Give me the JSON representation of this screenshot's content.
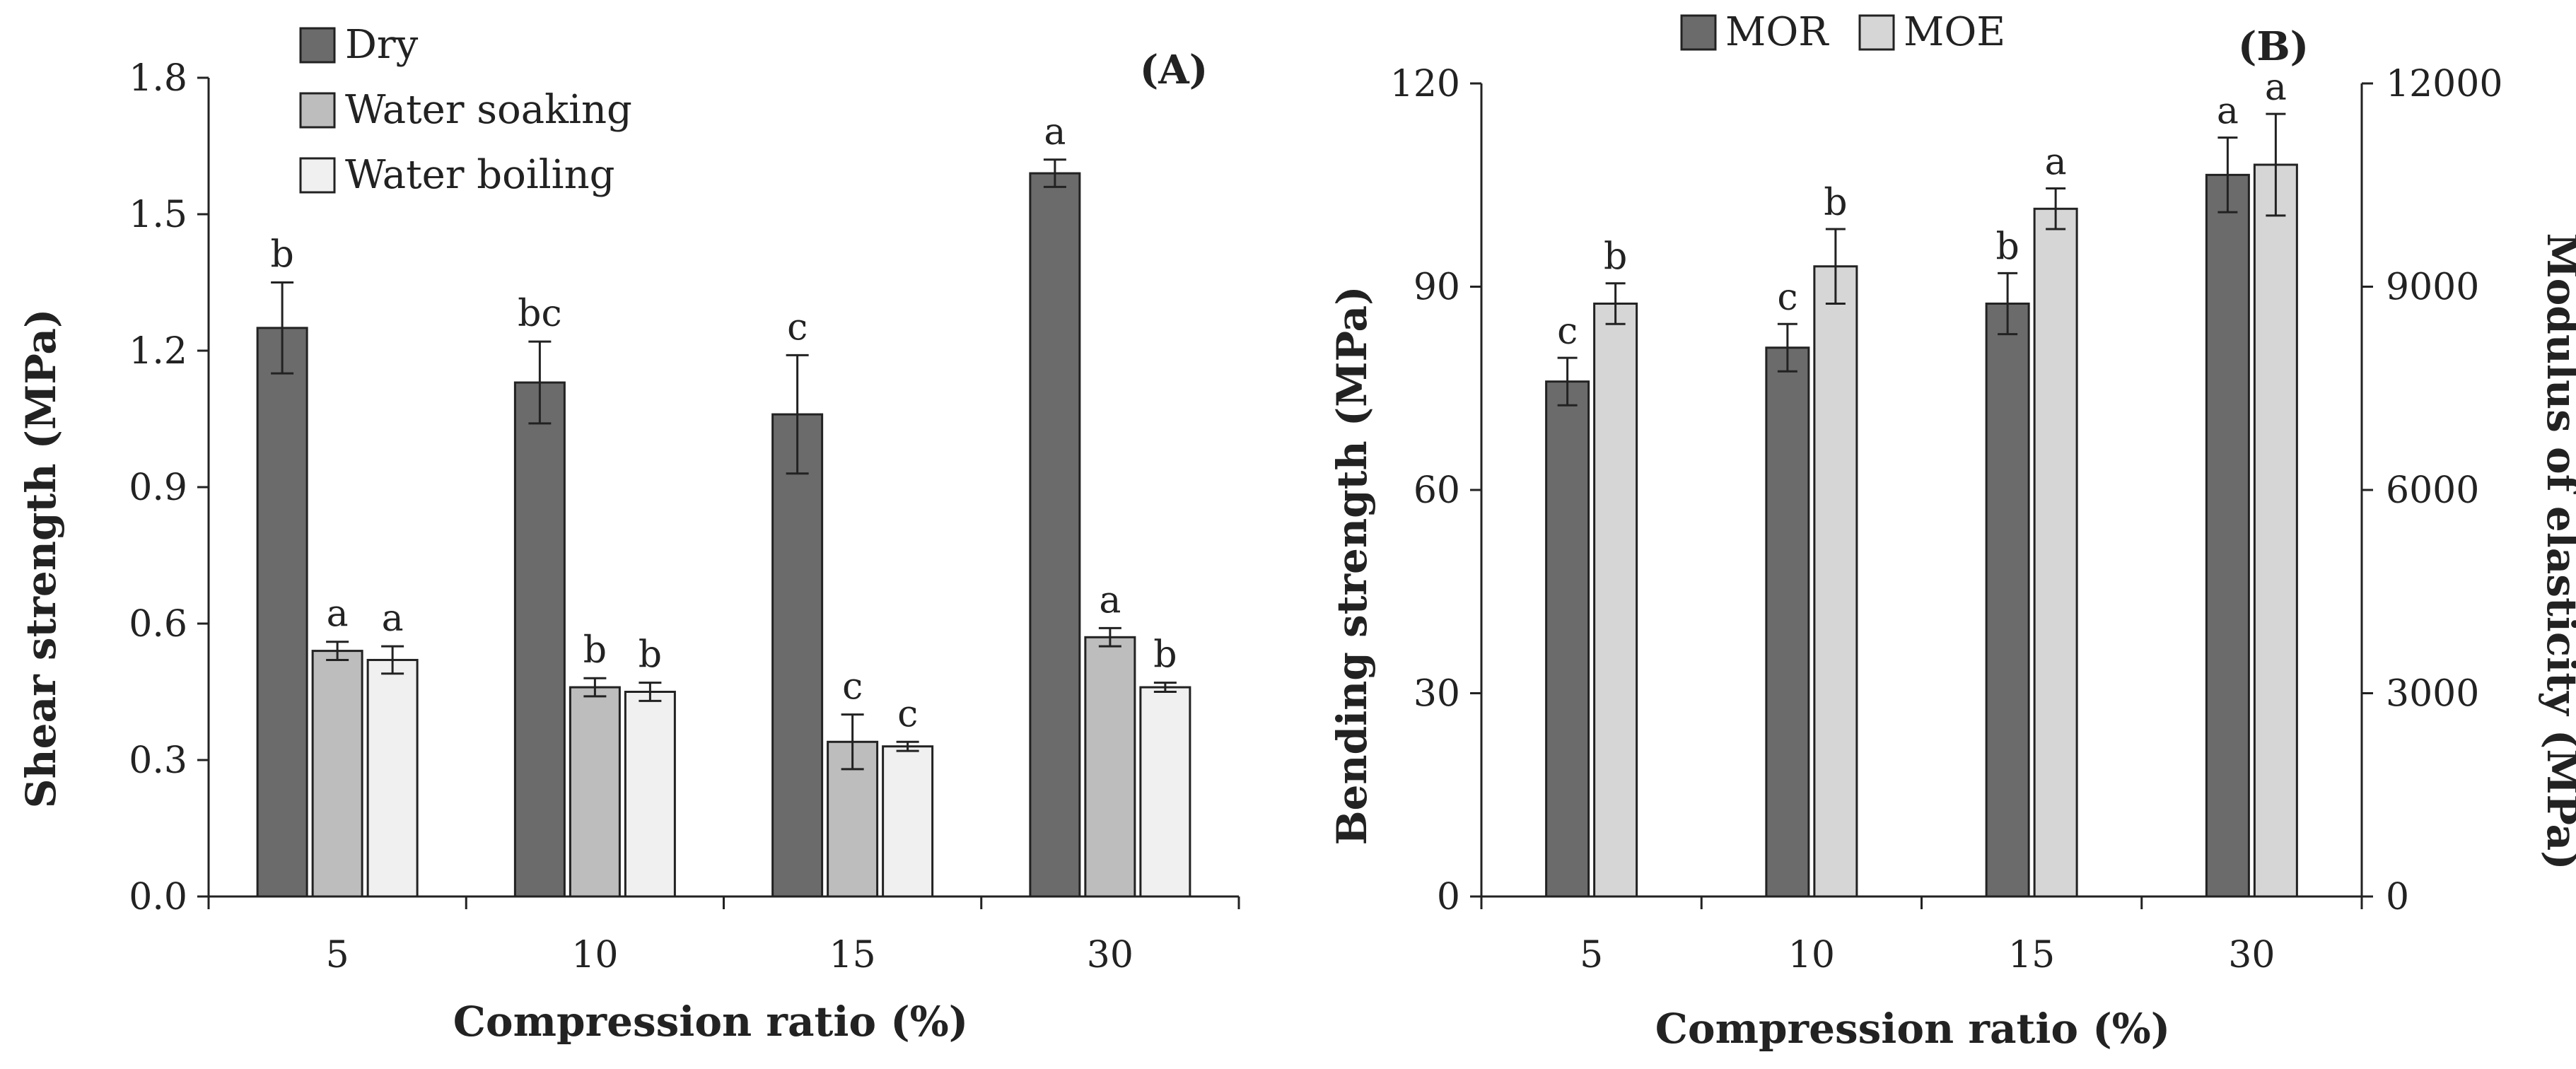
{
  "chart_data": [
    {
      "type": "bar",
      "panel_label": "(A)",
      "title": "",
      "xlabel": "Compression ratio (%)",
      "ylabel": "Shear strength (MPa)",
      "ylim": [
        0,
        1.8
      ],
      "yticks": [
        "0.0",
        "0.3",
        "0.6",
        "0.9",
        "1.2",
        "1.5",
        "1.8"
      ],
      "categories": [
        "5",
        "10",
        "15",
        "30"
      ],
      "legend_position": "top-left",
      "series": [
        {
          "name": "Dry",
          "color": "#6b6b6b",
          "values": [
            1.25,
            1.13,
            1.06,
            1.59
          ],
          "errors": [
            0.1,
            0.09,
            0.13,
            0.03
          ],
          "letters": [
            "b",
            "bc",
            "c",
            "a"
          ]
        },
        {
          "name": "Water soaking",
          "color": "#bdbdbd",
          "values": [
            0.54,
            0.46,
            0.34,
            0.57
          ],
          "errors": [
            0.02,
            0.02,
            0.06,
            0.02
          ],
          "letters": [
            "a",
            "b",
            "c",
            "a"
          ]
        },
        {
          "name": "Water boiling",
          "color": "#f0f0f0",
          "values": [
            0.52,
            0.45,
            0.33,
            0.46
          ],
          "errors": [
            0.03,
            0.02,
            0.01,
            0.01
          ],
          "letters": [
            "a",
            "b",
            "c",
            "b"
          ]
        }
      ]
    },
    {
      "type": "bar",
      "panel_label": "(B)",
      "title": "",
      "xlabel": "Compression ratio (%)",
      "ylabel": "Bending strength (MPa)",
      "y2label": "Modulus of elasticity (MPa)",
      "ylim": [
        0,
        120
      ],
      "y2lim": [
        0,
        12000
      ],
      "yticks": [
        "0",
        "30",
        "60",
        "90",
        "120"
      ],
      "y2ticks": [
        "0",
        "3000",
        "6000",
        "9000",
        "12000"
      ],
      "categories": [
        "5",
        "10",
        "15",
        "30"
      ],
      "legend_position": "top",
      "series": [
        {
          "name": "MOR",
          "axis": "left",
          "color": "#6b6b6b",
          "values": [
            76,
            81,
            87.5,
            106.5
          ],
          "errors": [
            3.5,
            3.5,
            4.5,
            5.5
          ],
          "letters": [
            "c",
            "c",
            "b",
            "a"
          ]
        },
        {
          "name": "MOE",
          "axis": "right",
          "color": "#d6d6d6",
          "values": [
            8750,
            9300,
            10150,
            10800
          ],
          "errors": [
            300,
            550,
            300,
            750
          ],
          "letters": [
            "b",
            "b",
            "a",
            "a"
          ]
        }
      ]
    }
  ]
}
